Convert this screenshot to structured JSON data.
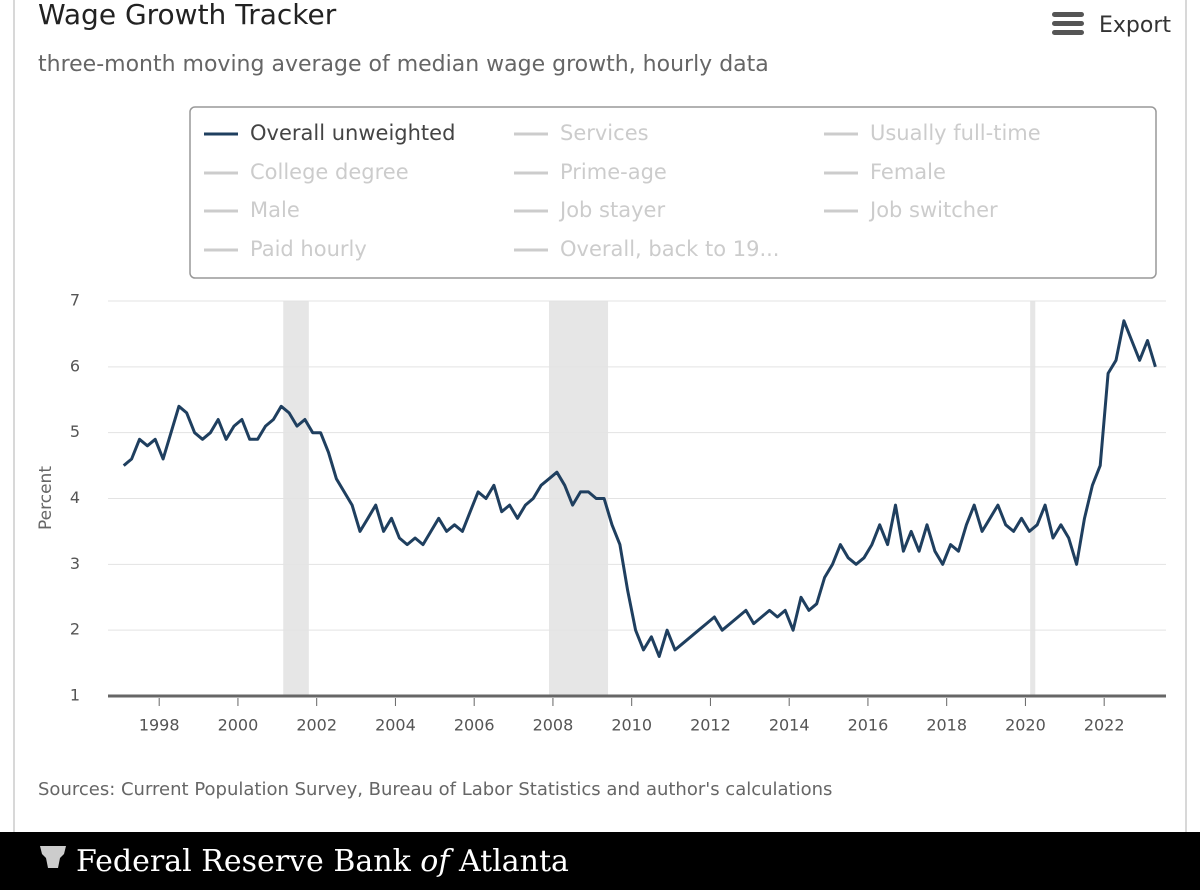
{
  "chart_data": {
    "type": "line",
    "title": "Wage Growth Tracker",
    "subtitle": "three-month moving average of median wage growth, hourly data",
    "y_label": "Percent",
    "source": "Sources: Current Population Survey, Bureau of Labor Statistics and author's calculations",
    "export": "Export",
    "xlim": [
      1996.7,
      2023.57
    ],
    "xticks": [
      1998,
      2000,
      2002,
      2004,
      2006,
      2008,
      2010,
      2012,
      2014,
      2016,
      2018,
      2020,
      2022
    ],
    "ylim": [
      1,
      7
    ],
    "yticks": [
      1,
      2,
      3,
      4,
      5,
      6,
      7
    ],
    "grid": true,
    "recessions": [
      [
        2001.15,
        2001.8
      ],
      [
        2007.9,
        2009.4
      ],
      [
        2020.12,
        2020.25
      ]
    ],
    "recession_color": "#e6e6e6",
    "x": [
      1997.1,
      1997.3,
      1997.5,
      1997.7,
      1997.9,
      1998.1,
      1998.3,
      1998.5,
      1998.7,
      1998.9,
      1999.1,
      1999.3,
      1999.5,
      1999.7,
      1999.9,
      2000.1,
      2000.3,
      2000.5,
      2000.7,
      2000.9,
      2001.1,
      2001.3,
      2001.5,
      2001.7,
      2001.9,
      2002.1,
      2002.3,
      2002.5,
      2002.7,
      2002.9,
      2003.1,
      2003.3,
      2003.5,
      2003.7,
      2003.9,
      2004.1,
      2004.3,
      2004.5,
      2004.7,
      2004.9,
      2005.1,
      2005.3,
      2005.5,
      2005.7,
      2005.9,
      2006.1,
      2006.3,
      2006.5,
      2006.7,
      2006.9,
      2007.1,
      2007.3,
      2007.5,
      2007.7,
      2007.9,
      2008.1,
      2008.3,
      2008.5,
      2008.7,
      2008.9,
      2009.1,
      2009.3,
      2009.5,
      2009.7,
      2009.9,
      2010.1,
      2010.3,
      2010.5,
      2010.7,
      2010.9,
      2011.1,
      2011.3,
      2011.5,
      2011.7,
      2011.9,
      2012.1,
      2012.3,
      2012.5,
      2012.7,
      2012.9,
      2013.1,
      2013.3,
      2013.5,
      2013.7,
      2013.9,
      2014.1,
      2014.3,
      2014.5,
      2014.7,
      2014.9,
      2015.1,
      2015.3,
      2015.5,
      2015.7,
      2015.9,
      2016.1,
      2016.3,
      2016.5,
      2016.7,
      2016.9,
      2017.1,
      2017.3,
      2017.5,
      2017.7,
      2017.9,
      2018.1,
      2018.3,
      2018.5,
      2018.7,
      2018.9,
      2019.1,
      2019.3,
      2019.5,
      2019.7,
      2019.9,
      2020.1,
      2020.3,
      2020.5,
      2020.7,
      2020.9,
      2021.1,
      2021.3,
      2021.5,
      2021.7,
      2021.9,
      2022.1,
      2022.3,
      2022.5,
      2022.7,
      2022.9,
      2023.1,
      2023.3
    ],
    "series": [
      {
        "name": "Overall unweighted",
        "color": "#1f3f5f",
        "values": [
          4.5,
          4.6,
          4.9,
          4.8,
          4.9,
          4.6,
          5.0,
          5.4,
          5.3,
          5.0,
          4.9,
          5.0,
          5.2,
          4.9,
          5.1,
          5.2,
          4.9,
          4.9,
          5.1,
          5.2,
          5.4,
          5.3,
          5.1,
          5.2,
          5.0,
          5.0,
          4.7,
          4.3,
          4.1,
          3.9,
          3.5,
          3.7,
          3.9,
          3.5,
          3.7,
          3.4,
          3.3,
          3.4,
          3.3,
          3.5,
          3.7,
          3.5,
          3.6,
          3.5,
          3.8,
          4.1,
          4.0,
          4.2,
          3.8,
          3.9,
          3.7,
          3.9,
          4.0,
          4.2,
          4.3,
          4.4,
          4.2,
          3.9,
          4.1,
          4.1,
          4.0,
          4.0,
          3.6,
          3.3,
          2.6,
          2.0,
          1.7,
          1.9,
          1.6,
          2.0,
          1.7,
          1.8,
          1.9,
          2.0,
          2.1,
          2.2,
          2.0,
          2.1,
          2.2,
          2.3,
          2.1,
          2.2,
          2.3,
          2.2,
          2.3,
          2.0,
          2.5,
          2.3,
          2.4,
          2.8,
          3.0,
          3.3,
          3.1,
          3.0,
          3.1,
          3.3,
          3.6,
          3.3,
          3.9,
          3.2,
          3.5,
          3.2,
          3.6,
          3.2,
          3.0,
          3.3,
          3.2,
          3.6,
          3.9,
          3.5,
          3.7,
          3.9,
          3.6,
          3.5,
          3.7,
          3.5,
          3.6,
          3.9,
          3.4,
          3.6,
          3.4,
          3.0,
          3.7,
          4.2,
          4.5,
          5.9,
          6.1,
          6.7,
          6.4,
          6.1,
          6.4,
          6.0
        ]
      }
    ],
    "inactive_series": [
      "Services",
      "Usually full-time",
      "College degree",
      "Prime-age",
      "Female",
      "Male",
      "Job stayer",
      "Job switcher",
      "Paid hourly",
      "Overall, back to 19..."
    ],
    "inactive_color": "#cccccc"
  },
  "footer": {
    "brand": [
      "Federal Reserve Bank ",
      "of",
      " Atlanta"
    ]
  }
}
